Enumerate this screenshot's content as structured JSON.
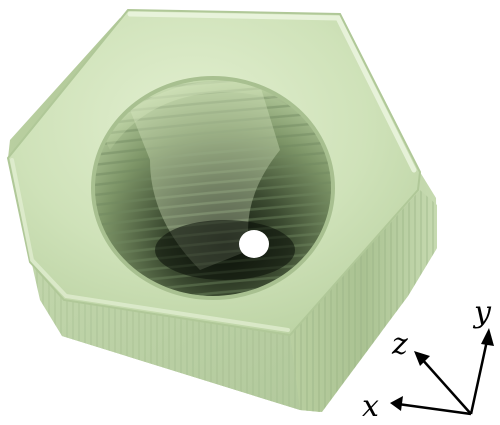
{
  "figure": {
    "subject": "hex-nut-render",
    "colors": {
      "body": "#c8dcb0",
      "body_light": "#dcebc8",
      "body_dark": "#9db486",
      "shadow": "#1c2416",
      "axis": "#000000"
    }
  },
  "axes": {
    "x_label": "x",
    "y_label": "y",
    "z_label": "z"
  }
}
